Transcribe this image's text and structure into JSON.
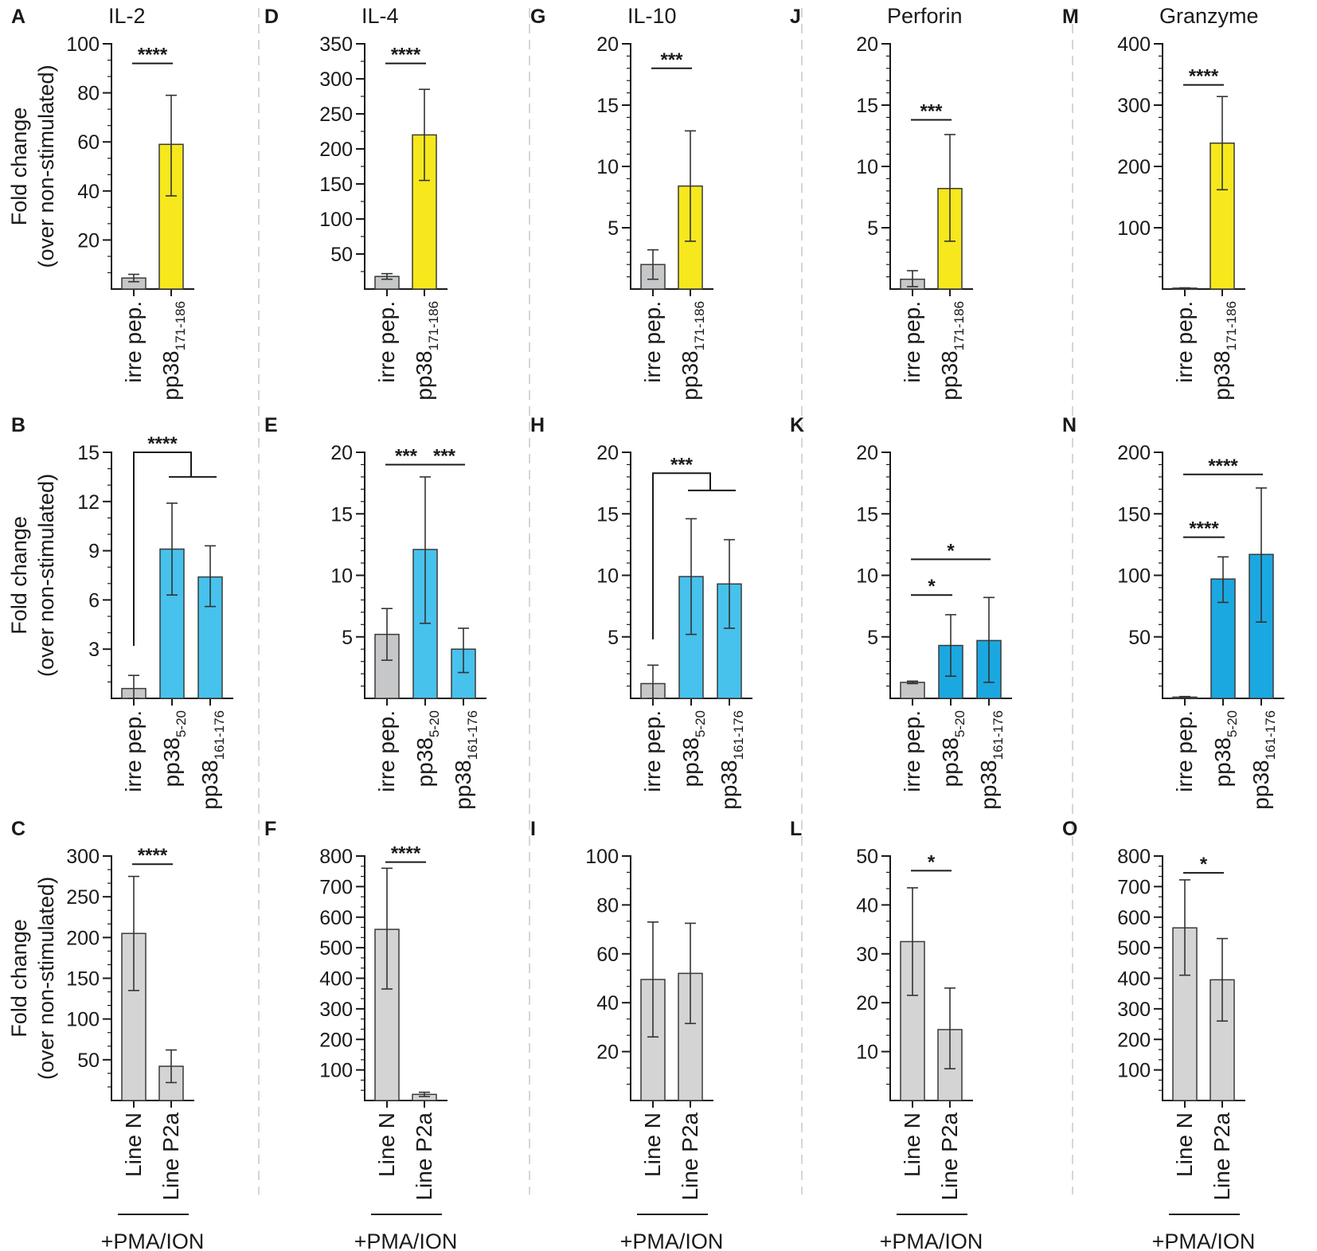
{
  "palette": {
    "irrelevant": "#c6c7c9",
    "yellow": "#f6e81c",
    "lightblue": "#47c2ec",
    "midblue": "#1ba8e0",
    "control": "#d4d4d4"
  },
  "common": {
    "ylabel_line1": "Fold change",
    "ylabel_line2": "(over non-stimulated)",
    "pma_label": "+PMA/ION"
  },
  "chart_data": [
    {
      "id": "A",
      "letter": "A",
      "title": "IL-2",
      "type": "bar",
      "ylim": [
        0,
        100
      ],
      "ticks": [
        20,
        40,
        60,
        80,
        100
      ],
      "minor": 2,
      "show_ylabel": true,
      "categories": [
        {
          "base": "irre pep.",
          "sub": ""
        },
        {
          "base": "pp38",
          "sub": "171-186"
        }
      ],
      "values": [
        4.5,
        59
      ],
      "errors": [
        [
          3,
          6
        ],
        [
          38,
          79
        ]
      ],
      "colors": [
        "irrelevant",
        "yellow"
      ],
      "sig": [
        {
          "type": "line",
          "from": 0,
          "to": 1,
          "level": 92,
          "label": "****"
        }
      ],
      "pma": false
    },
    {
      "id": "D",
      "letter": "D",
      "title": "IL-4",
      "type": "bar",
      "ylim": [
        0,
        350
      ],
      "ticks": [
        50,
        100,
        150,
        200,
        250,
        300,
        350
      ],
      "minor": 1,
      "show_ylabel": false,
      "categories": [
        {
          "base": "irre pep.",
          "sub": ""
        },
        {
          "base": "pp38",
          "sub": "171-186"
        }
      ],
      "values": [
        18,
        220
      ],
      "errors": [
        [
          14,
          22
        ],
        [
          155,
          285
        ]
      ],
      "colors": [
        "irrelevant",
        "yellow"
      ],
      "sig": [
        {
          "type": "line",
          "from": 0,
          "to": 1,
          "level": 322,
          "label": "****"
        }
      ],
      "pma": false
    },
    {
      "id": "G",
      "letter": "G",
      "title": "IL-10",
      "type": "bar",
      "ylim": [
        0,
        20
      ],
      "ticks": [
        5,
        10,
        15,
        20
      ],
      "minor": 4,
      "show_ylabel": false,
      "categories": [
        {
          "base": "irre pep.",
          "sub": ""
        },
        {
          "base": "pp38",
          "sub": "171-186"
        }
      ],
      "values": [
        2,
        8.4
      ],
      "errors": [
        [
          0.8,
          3.2
        ],
        [
          3.9,
          12.9
        ]
      ],
      "colors": [
        "irrelevant",
        "yellow"
      ],
      "sig": [
        {
          "type": "line",
          "from": 0,
          "to": 1,
          "level": 18,
          "label": "***"
        }
      ],
      "pma": false
    },
    {
      "id": "J",
      "letter": "J",
      "title": "Perforin",
      "type": "bar",
      "ylim": [
        0,
        20
      ],
      "ticks": [
        5,
        10,
        15,
        20
      ],
      "minor": 4,
      "show_ylabel": false,
      "categories": [
        {
          "base": "irre pep.",
          "sub": ""
        },
        {
          "base": "pp38",
          "sub": "171-186"
        }
      ],
      "values": [
        0.8,
        8.2
      ],
      "errors": [
        [
          0.2,
          1.5
        ],
        [
          3.9,
          12.6
        ]
      ],
      "colors": [
        "irrelevant",
        "yellow"
      ],
      "sig": [
        {
          "type": "line",
          "from": 0,
          "to": 1,
          "level": 13.8,
          "label": "***"
        }
      ],
      "pma": false
    },
    {
      "id": "M",
      "letter": "M",
      "title": "Granzyme",
      "type": "bar",
      "ylim": [
        0,
        400
      ],
      "ticks": [
        100,
        200,
        300,
        400
      ],
      "minor": 4,
      "show_ylabel": false,
      "categories": [
        {
          "base": "irre pep.",
          "sub": ""
        },
        {
          "base": "pp38",
          "sub": "171-186"
        }
      ],
      "values": [
        1.5,
        238
      ],
      "errors": [
        [
          1,
          2
        ],
        [
          162,
          314
        ]
      ],
      "colors": [
        "irrelevant",
        "yellow"
      ],
      "sig": [
        {
          "type": "line",
          "from": 0,
          "to": 1,
          "level": 333,
          "label": "****"
        }
      ],
      "pma": false
    },
    {
      "id": "B",
      "letter": "B",
      "title": "",
      "type": "bar",
      "ylim": [
        0,
        15
      ],
      "ticks": [
        3,
        6,
        9,
        12,
        15
      ],
      "minor": 2,
      "show_ylabel": true,
      "categories": [
        {
          "base": "irre pep.",
          "sub": ""
        },
        {
          "base": "pp38",
          "sub": "5-20"
        },
        {
          "base": "pp38",
          "sub": "161-176"
        }
      ],
      "values": [
        0.6,
        9.1,
        7.4
      ],
      "errors": [
        [
          0,
          1.4
        ],
        [
          6.3,
          11.9
        ],
        [
          5.6,
          9.3
        ]
      ],
      "colors": [
        "irrelevant",
        "lightblue",
        "lightblue"
      ],
      "sig": [
        {
          "type": "bracket",
          "from": 0,
          "to": [
            1,
            2
          ],
          "level": 15,
          "low": 3.2,
          "level2": 13.5,
          "label": "****"
        }
      ],
      "pma": false
    },
    {
      "id": "E",
      "letter": "E",
      "title": "",
      "type": "bar",
      "ylim": [
        0,
        20
      ],
      "ticks": [
        5,
        10,
        15,
        20
      ],
      "minor": 4,
      "show_ylabel": false,
      "categories": [
        {
          "base": "irre pep.",
          "sub": ""
        },
        {
          "base": "pp38",
          "sub": "5-20"
        },
        {
          "base": "pp38",
          "sub": "161-176"
        }
      ],
      "values": [
        5.2,
        12.1,
        4
      ],
      "errors": [
        [
          3.1,
          7.3
        ],
        [
          6.1,
          18
        ],
        [
          2.1,
          5.7
        ]
      ],
      "colors": [
        "irrelevant",
        "lightblue",
        "lightblue"
      ],
      "sig": [
        {
          "type": "line",
          "from": 0,
          "to": 1,
          "level": 19,
          "label": "***"
        },
        {
          "type": "line",
          "from": 1,
          "to": 2,
          "level": 19,
          "label": "***"
        }
      ],
      "pma": false
    },
    {
      "id": "H",
      "letter": "H",
      "title": "",
      "type": "bar",
      "ylim": [
        0,
        20
      ],
      "ticks": [
        5,
        10,
        15,
        20
      ],
      "minor": 4,
      "show_ylabel": false,
      "categories": [
        {
          "base": "irre pep.",
          "sub": ""
        },
        {
          "base": "pp38",
          "sub": "5-20"
        },
        {
          "base": "pp38",
          "sub": "161-176"
        }
      ],
      "values": [
        1.2,
        9.9,
        9.3
      ],
      "errors": [
        [
          0,
          2.7
        ],
        [
          5.2,
          14.6
        ],
        [
          5.7,
          12.9
        ]
      ],
      "colors": [
        "irrelevant",
        "lightblue",
        "lightblue"
      ],
      "sig": [
        {
          "type": "bracket",
          "from": 0,
          "to": [
            1,
            2
          ],
          "level": 18.3,
          "low": 4.8,
          "level2": 16.9,
          "label": "***"
        }
      ],
      "pma": false
    },
    {
      "id": "K",
      "letter": "K",
      "title": "",
      "type": "bar",
      "ylim": [
        0,
        20
      ],
      "ticks": [
        5,
        10,
        15,
        20
      ],
      "minor": 4,
      "show_ylabel": false,
      "categories": [
        {
          "base": "irre pep.",
          "sub": ""
        },
        {
          "base": "pp38",
          "sub": "5-20"
        },
        {
          "base": "pp38",
          "sub": "161-176"
        }
      ],
      "values": [
        1.3,
        4.3,
        4.7
      ],
      "errors": [
        [
          1.2,
          1.4
        ],
        [
          1.8,
          6.8
        ],
        [
          1.3,
          8.2
        ]
      ],
      "colors": [
        "irrelevant",
        "midblue",
        "midblue"
      ],
      "sig": [
        {
          "type": "line",
          "from": 0,
          "to": 1,
          "level": 8.4,
          "label": "*"
        },
        {
          "type": "line",
          "from": 0,
          "to": 2,
          "level": 11.3,
          "label": "*"
        }
      ],
      "pma": false
    },
    {
      "id": "N",
      "letter": "N",
      "title": "",
      "type": "bar",
      "ylim": [
        0,
        200
      ],
      "ticks": [
        50,
        100,
        150,
        200
      ],
      "minor": 4,
      "show_ylabel": false,
      "categories": [
        {
          "base": "irre pep.",
          "sub": ""
        },
        {
          "base": "pp38",
          "sub": "5-20"
        },
        {
          "base": "pp38",
          "sub": "161-176"
        }
      ],
      "values": [
        1,
        97,
        117
      ],
      "errors": [
        [
          0.5,
          1.5
        ],
        [
          78,
          115
        ],
        [
          62,
          171
        ]
      ],
      "colors": [
        "irrelevant",
        "midblue",
        "midblue"
      ],
      "sig": [
        {
          "type": "line",
          "from": 0,
          "to": 1,
          "level": 131,
          "label": "****"
        },
        {
          "type": "line",
          "from": 0,
          "to": 2,
          "level": 182,
          "label": "****"
        }
      ],
      "pma": false
    },
    {
      "id": "C",
      "letter": "C",
      "title": "",
      "type": "bar",
      "ylim": [
        0,
        300
      ],
      "ticks": [
        50,
        100,
        150,
        200,
        250,
        300
      ],
      "minor": 2,
      "show_ylabel": true,
      "categories": [
        {
          "base": "Line N",
          "sub": ""
        },
        {
          "base": "Line P2a",
          "sub": ""
        }
      ],
      "values": [
        205,
        42
      ],
      "errors": [
        [
          135,
          275
        ],
        [
          22,
          62
        ]
      ],
      "colors": [
        "control",
        "control"
      ],
      "sig": [
        {
          "type": "line",
          "from": 0,
          "to": 1,
          "level": 290,
          "label": "****"
        }
      ],
      "pma": true
    },
    {
      "id": "F",
      "letter": "F",
      "title": "",
      "type": "bar",
      "ylim": [
        0,
        800
      ],
      "ticks": [
        100,
        200,
        300,
        400,
        500,
        600,
        700,
        800
      ],
      "minor": 2,
      "show_ylabel": false,
      "categories": [
        {
          "base": "Line N",
          "sub": ""
        },
        {
          "base": "Line P2a",
          "sub": ""
        }
      ],
      "values": [
        560,
        20
      ],
      "errors": [
        [
          365,
          760
        ],
        [
          13,
          27
        ]
      ],
      "colors": [
        "control",
        "control"
      ],
      "sig": [
        {
          "type": "line",
          "from": 0,
          "to": 1,
          "level": 780,
          "label": "****"
        }
      ],
      "pma": true
    },
    {
      "id": "I",
      "letter": "I",
      "title": "",
      "type": "bar",
      "ylim": [
        0,
        100
      ],
      "ticks": [
        20,
        40,
        60,
        80,
        100
      ],
      "minor": 2,
      "show_ylabel": false,
      "categories": [
        {
          "base": "Line N",
          "sub": ""
        },
        {
          "base": "Line P2a",
          "sub": ""
        }
      ],
      "values": [
        49.5,
        52
      ],
      "errors": [
        [
          26,
          73
        ],
        [
          31.5,
          72.5
        ]
      ],
      "colors": [
        "control",
        "control"
      ],
      "sig": [],
      "pma": true
    },
    {
      "id": "L",
      "letter": "L",
      "title": "",
      "type": "bar",
      "ylim": [
        0,
        50
      ],
      "ticks": [
        10,
        20,
        30,
        40,
        50
      ],
      "minor": 2,
      "show_ylabel": false,
      "categories": [
        {
          "base": "Line N",
          "sub": ""
        },
        {
          "base": "Line P2a",
          "sub": ""
        }
      ],
      "values": [
        32.5,
        14.5
      ],
      "errors": [
        [
          21.5,
          43.5
        ],
        [
          6.5,
          23
        ]
      ],
      "colors": [
        "control",
        "control"
      ],
      "sig": [
        {
          "type": "line",
          "from": 0,
          "to": 1,
          "level": 47,
          "label": "*"
        }
      ],
      "pma": true
    },
    {
      "id": "O",
      "letter": "O",
      "title": "",
      "type": "bar",
      "ylim": [
        0,
        800
      ],
      "ticks": [
        100,
        200,
        300,
        400,
        500,
        600,
        700,
        800
      ],
      "minor": 2,
      "show_ylabel": false,
      "categories": [
        {
          "base": "Line N",
          "sub": ""
        },
        {
          "base": "Line P2a",
          "sub": ""
        }
      ],
      "values": [
        565,
        395
      ],
      "errors": [
        [
          410,
          722
        ],
        [
          260,
          530
        ]
      ],
      "colors": [
        "control",
        "control"
      ],
      "sig": [
        {
          "type": "line",
          "from": 0,
          "to": 1,
          "level": 745,
          "label": "*"
        }
      ],
      "pma": true
    }
  ]
}
